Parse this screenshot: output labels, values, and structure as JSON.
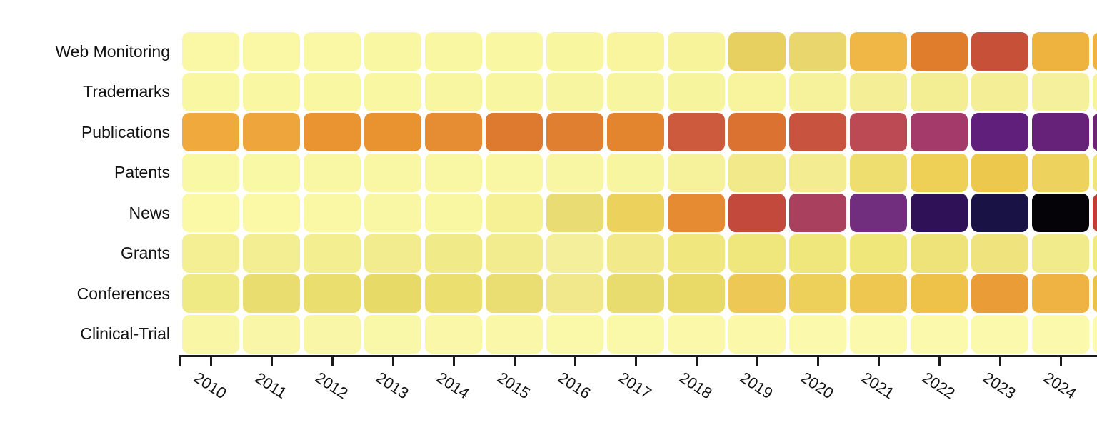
{
  "chart_data": {
    "type": "heatmap",
    "title": "",
    "xlabel": "",
    "ylabel": "",
    "legend": "none",
    "background": "#ffffff",
    "axis_color": "#1a1a1a",
    "text_color": "#111111",
    "value_encoding": "color intensity (pale yellow = low, gold/orange = mid, red/purple/black = high); numeric values not displayed",
    "x_labels": [
      "2010",
      "2011",
      "2012",
      "2013",
      "2014",
      "2015",
      "2016",
      "2017",
      "2018",
      "2019",
      "2020",
      "2021",
      "2022",
      "2023",
      "2024"
    ],
    "partial_last_column": true,
    "rows": [
      {
        "label": "Web Monitoring",
        "colors": [
          "#fbf8a5",
          "#fbf8a5",
          "#faf8a4",
          "#faf7a3",
          "#faf7a3",
          "#faf7a2",
          "#f9f6a0",
          "#f8f59e",
          "#f7f39b",
          "#e7d05f",
          "#e9d76e",
          "#f0b646",
          "#e07d2c",
          "#c75038",
          "#eeb23f",
          "#eeb23f"
        ]
      },
      {
        "label": "Trademarks",
        "colors": [
          "#faf7a3",
          "#faf7a3",
          "#faf7a3",
          "#f9f7a2",
          "#f9f6a1",
          "#f9f6a1",
          "#f8f5a0",
          "#f8f5a0",
          "#f7f49e",
          "#f7f49d",
          "#f6f29b",
          "#f4ef97",
          "#f3ed94",
          "#f4ee96",
          "#f4f09c",
          "#f6f2a0"
        ]
      },
      {
        "label": "Publications",
        "colors": [
          "#efa93c",
          "#eea53b",
          "#e99431",
          "#e8932f",
          "#e68c33",
          "#de7a30",
          "#e07f2f",
          "#e3852f",
          "#cd5a3c",
          "#dc7231",
          "#c85440",
          "#bb4a55",
          "#a33a69",
          "#611f7c",
          "#662179",
          "#6f2376"
        ]
      },
      {
        "label": "Patents",
        "colors": [
          "#f9f8a5",
          "#f9f8a5",
          "#f9f7a4",
          "#f9f7a4",
          "#f9f7a4",
          "#f9f7a3",
          "#f8f6a2",
          "#f8f5a0",
          "#f6f29c",
          "#f2ea8a",
          "#f3ec90",
          "#eedd6f",
          "#edd055",
          "#ecc84d",
          "#edd35e",
          "#f0e57a"
        ]
      },
      {
        "label": "News",
        "colors": [
          "#fbf8a6",
          "#fbf8a6",
          "#faf8a5",
          "#faf7a4",
          "#faf7a3",
          "#f6f195",
          "#e8dc72",
          "#ecd25d",
          "#e68b32",
          "#c4493d",
          "#a8405e",
          "#722e7e",
          "#2e1156",
          "#191244",
          "#050308",
          "#c33b31"
        ]
      },
      {
        "label": "Grants",
        "colors": [
          "#f4ef93",
          "#f3ee92",
          "#f3ee90",
          "#f2ec8e",
          "#f1ea89",
          "#f2ec8e",
          "#f4ef9a",
          "#f1e98a",
          "#f0e77f",
          "#efe67c",
          "#f0e77c",
          "#f0e77a",
          "#eee378",
          "#efe37d",
          "#f2eb8c",
          "#f1e982"
        ]
      },
      {
        "label": "Conferences",
        "colors": [
          "#f0ea85",
          "#e9dd6f",
          "#eade6f",
          "#e8da66",
          "#ebdf70",
          "#eade73",
          "#f0e88a",
          "#e9dc6e",
          "#e9da68",
          "#edc854",
          "#ecd05a",
          "#edc74f",
          "#eec148",
          "#ea9d36",
          "#eeb342",
          "#ecc04a"
        ]
      },
      {
        "label": "Clinical-Trial",
        "colors": [
          "#f9f7a6",
          "#f9f7a7",
          "#f9f7a7",
          "#f9f7a8",
          "#faf7a8",
          "#faf8a8",
          "#faf8a9",
          "#faf8a9",
          "#fbf8aa",
          "#fbf8aa",
          "#fbf9ab",
          "#fbf9ab",
          "#fbf9ac",
          "#fbf9ac",
          "#fbf9ac",
          "#fcfaae"
        ]
      }
    ]
  }
}
